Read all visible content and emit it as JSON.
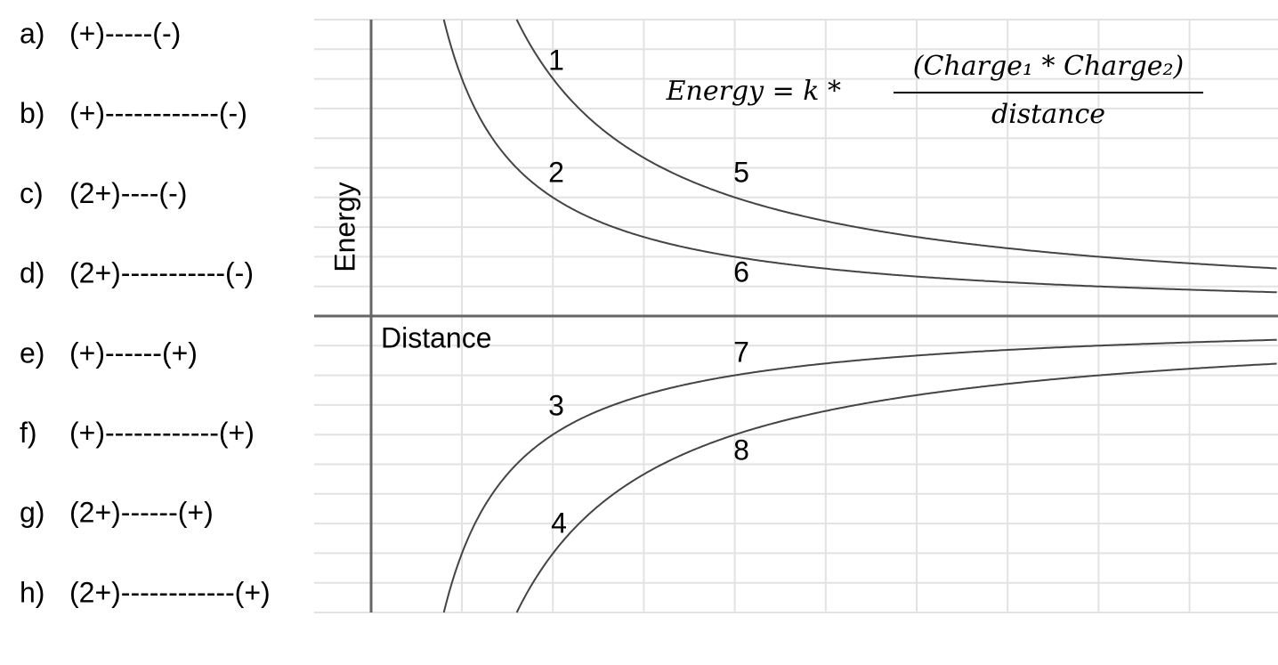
{
  "items": [
    {
      "letter": "a)",
      "text": "(+)-----(-)"
    },
    {
      "letter": "b)",
      "text": "(+)------------(-)"
    },
    {
      "letter": "c)",
      "text": "(2+)----(-)"
    },
    {
      "letter": "d)",
      "text": "(2+)-----------(-)"
    },
    {
      "letter": "e)",
      "text": "(+)------(+)"
    },
    {
      "letter": "f)",
      "text": "(+)------------(+)"
    },
    {
      "letter": "g)",
      "text": "(2+)------(+)"
    },
    {
      "letter": "h)",
      "text": "(2+)------------(+)"
    }
  ],
  "graph": {
    "y_label": "Energy",
    "x_label": "Distance",
    "points": [
      "1",
      "2",
      "3",
      "4",
      "5",
      "6",
      "7",
      "8"
    ],
    "formula": {
      "lhs": "Energy = k *",
      "numerator": "(Charge₁ * Charge₂)",
      "denominator": "distance"
    }
  }
}
